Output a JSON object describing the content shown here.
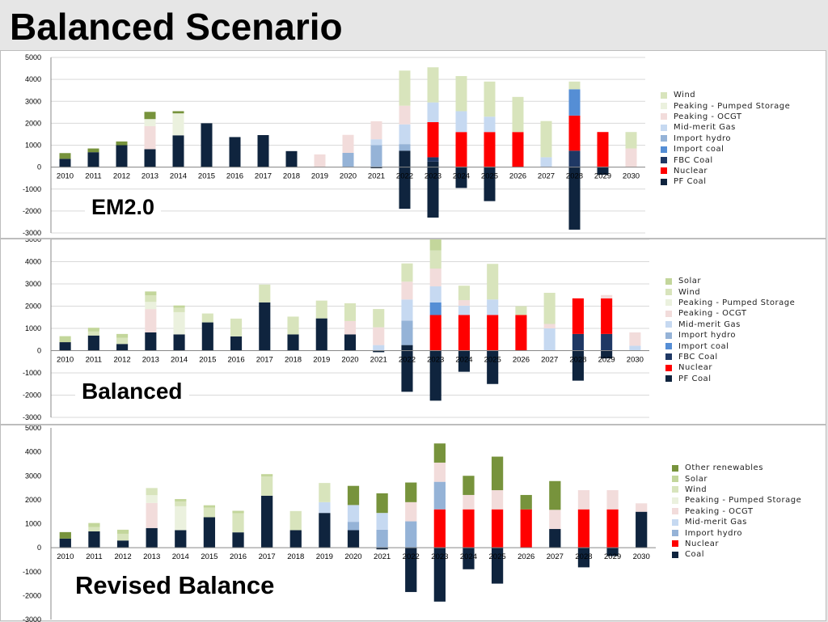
{
  "slide": {
    "title": "Balanced Scenario"
  },
  "colors": {
    "Wind": "#d8e4bc",
    "Solar": "#c3d69b",
    "Other renewables": "#77933c",
    "Peaking - Pumped Storage": "#ebf1de",
    "Peaking - OCGT": "#f2dcdb",
    "Mid-merit Gas": "#c6d9f1",
    "Import hydro": "#95b3d7",
    "Import coal": "#558ed5",
    "FBC Coal": "#1f3864",
    "Nuclear": "#ff0000",
    "PF Coal": "#0f243e",
    "Coal": "#0f243e"
  },
  "chart_data": [
    {
      "type": "bar",
      "stacked": true,
      "label": "EM2.0",
      "categories": [
        "2010",
        "2011",
        "2012",
        "2013",
        "2014",
        "2015",
        "2016",
        "2017",
        "2018",
        "2019",
        "2020",
        "2021",
        "2022",
        "2023",
        "2024",
        "2025",
        "2026",
        "2027",
        "2028",
        "2029",
        "2030"
      ],
      "ylim": [
        -3000,
        5000
      ],
      "yticks": [
        -3000,
        -2000,
        -1000,
        0,
        1000,
        2000,
        3000,
        4000,
        5000
      ],
      "grid": true,
      "legend_position": "right",
      "legend": [
        "Wind",
        "Peaking - Pumped Storage",
        "Peaking - OCGT",
        "Mid-merit Gas",
        "Import hydro",
        "Import coal",
        "FBC Coal",
        "Nuclear",
        "PF Coal"
      ],
      "series": [
        {
          "name": "PF Coal",
          "values": [
            380,
            680,
            1000,
            820,
            1450,
            2000,
            1370,
            1460,
            730,
            0,
            0,
            -50,
            750,
            250,
            0,
            0,
            0,
            0,
            0,
            -350,
            0
          ]
        },
        {
          "name": "FBC Coal",
          "values": [
            0,
            0,
            0,
            0,
            0,
            0,
            0,
            0,
            0,
            0,
            0,
            0,
            0,
            200,
            0,
            0,
            0,
            0,
            750,
            0,
            0
          ]
        },
        {
          "name": "Nuclear",
          "values": [
            0,
            0,
            0,
            0,
            0,
            0,
            0,
            0,
            0,
            0,
            0,
            0,
            0,
            1600,
            1600,
            1600,
            1600,
            0,
            1600,
            1600,
            0
          ]
        },
        {
          "name": "Import coal",
          "values": [
            0,
            0,
            0,
            0,
            0,
            0,
            0,
            0,
            0,
            0,
            0,
            0,
            0,
            0,
            0,
            0,
            0,
            0,
            1200,
            0,
            0
          ]
        },
        {
          "name": "Import hydro",
          "values": [
            0,
            0,
            0,
            0,
            0,
            0,
            0,
            0,
            0,
            0,
            650,
            1000,
            300,
            0,
            0,
            0,
            0,
            0,
            0,
            0,
            0
          ]
        },
        {
          "name": "Mid-merit Gas",
          "values": [
            0,
            0,
            0,
            0,
            0,
            0,
            0,
            0,
            0,
            0,
            0,
            270,
            900,
            900,
            950,
            700,
            0,
            450,
            0,
            0,
            0
          ]
        },
        {
          "name": "Peaking - OCGT",
          "values": [
            0,
            0,
            0,
            1050,
            0,
            0,
            0,
            0,
            0,
            580,
            820,
            820,
            850,
            0,
            0,
            0,
            0,
            0,
            0,
            0,
            850
          ]
        },
        {
          "name": "Peaking - Pumped Storage",
          "values": [
            0,
            0,
            0,
            320,
            1000,
            0,
            0,
            0,
            0,
            0,
            0,
            0,
            0,
            0,
            0,
            0,
            0,
            0,
            0,
            0,
            0
          ]
        },
        {
          "name": "Wind",
          "values": [
            0,
            0,
            0,
            0,
            0,
            0,
            0,
            0,
            0,
            0,
            0,
            0,
            1600,
            1600,
            1600,
            1600,
            1600,
            1650,
            350,
            0,
            750
          ]
        },
        {
          "name": "Other renewables",
          "values": [
            260,
            170,
            170,
            330,
            100,
            0,
            0,
            0,
            0,
            0,
            0,
            0,
            0,
            0,
            0,
            0,
            0,
            0,
            0,
            0,
            0
          ]
        },
        {
          "name": "PF Coal",
          "values": [
            0,
            0,
            0,
            0,
            0,
            0,
            0,
            0,
            0,
            0,
            0,
            0,
            -1900,
            -2300,
            -950,
            -1550,
            0,
            0,
            -2850,
            0,
            0
          ]
        }
      ]
    },
    {
      "type": "bar",
      "stacked": true,
      "label": "Balanced",
      "categories": [
        "2010",
        "2011",
        "2012",
        "2013",
        "2014",
        "2015",
        "2016",
        "2017",
        "2018",
        "2019",
        "2020",
        "2021",
        "2022",
        "2023",
        "2024",
        "2025",
        "2026",
        "2027",
        "2028",
        "2029",
        "2030"
      ],
      "ylim": [
        -3000,
        5000
      ],
      "yticks": [
        -3000,
        -2000,
        -1000,
        0,
        1000,
        2000,
        3000,
        4000,
        5000
      ],
      "grid": true,
      "legend_position": "right",
      "legend": [
        "Solar",
        "Wind",
        "Peaking - Pumped Storage",
        "Peaking - OCGT",
        "Mid-merit Gas",
        "Import hydro",
        "Import coal",
        "FBC Coal",
        "Nuclear",
        "PF Coal"
      ],
      "series": [
        {
          "name": "PF Coal",
          "values": [
            380,
            680,
            300,
            820,
            730,
            1270,
            640,
            2170,
            730,
            1450,
            730,
            -70,
            250,
            0,
            0,
            0,
            0,
            0,
            0,
            -350,
            0
          ]
        },
        {
          "name": "FBC Coal",
          "values": [
            0,
            0,
            0,
            0,
            0,
            0,
            0,
            0,
            0,
            0,
            0,
            0,
            0,
            0,
            0,
            0,
            0,
            0,
            750,
            750,
            0
          ]
        },
        {
          "name": "Nuclear",
          "values": [
            0,
            0,
            0,
            0,
            0,
            0,
            0,
            0,
            0,
            0,
            0,
            0,
            0,
            1600,
            1600,
            1600,
            1600,
            0,
            1600,
            1600,
            0
          ]
        },
        {
          "name": "Import coal",
          "values": [
            0,
            0,
            0,
            0,
            0,
            0,
            0,
            0,
            0,
            0,
            0,
            0,
            0,
            570,
            0,
            0,
            0,
            0,
            0,
            0,
            0
          ]
        },
        {
          "name": "Import hydro",
          "values": [
            0,
            0,
            0,
            0,
            0,
            0,
            0,
            0,
            0,
            0,
            0,
            0,
            1100,
            0,
            0,
            0,
            0,
            0,
            0,
            0,
            0
          ]
        },
        {
          "name": "Mid-merit Gas",
          "values": [
            0,
            0,
            0,
            0,
            0,
            0,
            0,
            0,
            0,
            0,
            0,
            250,
            950,
            720,
            420,
            700,
            0,
            1000,
            0,
            0,
            220
          ]
        },
        {
          "name": "Peaking - OCGT",
          "values": [
            0,
            0,
            0,
            1050,
            0,
            0,
            0,
            0,
            0,
            0,
            600,
            800,
            800,
            800,
            250,
            0,
            0,
            200,
            0,
            150,
            600
          ]
        },
        {
          "name": "Peaking - Pumped Storage",
          "values": [
            0,
            0,
            0,
            320,
            1000,
            0,
            0,
            0,
            0,
            0,
            0,
            0,
            0,
            0,
            0,
            0,
            0,
            0,
            0,
            0,
            0
          ]
        },
        {
          "name": "Wind",
          "values": [
            0,
            180,
            280,
            300,
            200,
            400,
            800,
            800,
            800,
            800,
            800,
            820,
            820,
            820,
            650,
            1600,
            400,
            1400,
            0,
            0,
            0
          ]
        },
        {
          "name": "Solar",
          "values": [
            270,
            170,
            170,
            170,
            100,
            0,
            0,
            0,
            0,
            0,
            0,
            0,
            0,
            500,
            0,
            0,
            0,
            0,
            0,
            0,
            0
          ]
        },
        {
          "name": "PF Coal",
          "values": [
            0,
            0,
            0,
            0,
            0,
            0,
            0,
            0,
            0,
            0,
            0,
            0,
            -1850,
            -2250,
            -950,
            -1500,
            0,
            0,
            -1350,
            0,
            0
          ]
        }
      ]
    },
    {
      "type": "bar",
      "stacked": true,
      "label": "Revised Balance",
      "categories": [
        "2010",
        "2011",
        "2012",
        "2013",
        "2014",
        "2015",
        "2016",
        "2017",
        "2018",
        "2019",
        "2020",
        "2021",
        "2022",
        "2023",
        "2024",
        "2025",
        "2026",
        "2027",
        "2028",
        "2029",
        "2030"
      ],
      "ylim": [
        -3000,
        5000
      ],
      "yticks": [
        -3000,
        -2000,
        -1000,
        0,
        1000,
        2000,
        3000,
        4000,
        5000
      ],
      "grid": false,
      "legend_position": "right",
      "legend": [
        "Other renewables",
        "Solar",
        "Wind",
        "Peaking - Pumped Storage",
        "Peaking - OCGT",
        "Mid-merit Gas",
        "Import hydro",
        "Nuclear",
        "Coal"
      ],
      "series": [
        {
          "name": "Coal",
          "values": [
            380,
            680,
            300,
            820,
            730,
            1270,
            640,
            2170,
            730,
            1450,
            730,
            -70,
            0,
            0,
            0,
            0,
            0,
            780,
            0,
            -350,
            1500
          ]
        },
        {
          "name": "Nuclear",
          "values": [
            0,
            0,
            0,
            0,
            0,
            0,
            0,
            0,
            0,
            0,
            0,
            0,
            0,
            1600,
            1600,
            1600,
            1600,
            0,
            1600,
            1600,
            0
          ]
        },
        {
          "name": "Import hydro",
          "values": [
            0,
            0,
            0,
            0,
            0,
            0,
            0,
            0,
            0,
            0,
            350,
            750,
            1100,
            1150,
            0,
            0,
            0,
            0,
            0,
            0,
            0
          ]
        },
        {
          "name": "Mid-merit Gas",
          "values": [
            0,
            0,
            0,
            0,
            0,
            0,
            0,
            0,
            0,
            450,
            700,
            700,
            0,
            0,
            0,
            0,
            0,
            0,
            0,
            0,
            0
          ]
        },
        {
          "name": "Peaking - OCGT",
          "values": [
            0,
            0,
            0,
            1050,
            0,
            0,
            0,
            0,
            0,
            0,
            0,
            0,
            800,
            800,
            600,
            800,
            0,
            800,
            800,
            800,
            350
          ]
        },
        {
          "name": "Peaking - Pumped Storage",
          "values": [
            0,
            0,
            0,
            320,
            1000,
            0,
            0,
            0,
            0,
            0,
            0,
            0,
            0,
            0,
            0,
            0,
            0,
            0,
            0,
            0,
            0
          ]
        },
        {
          "name": "Wind",
          "values": [
            0,
            180,
            280,
            300,
            200,
            400,
            800,
            800,
            800,
            800,
            0,
            0,
            0,
            0,
            0,
            0,
            0,
            0,
            0,
            0,
            0
          ]
        },
        {
          "name": "Solar",
          "values": [
            0,
            170,
            170,
            0,
            100,
            100,
            100,
            100,
            0,
            0,
            0,
            0,
            0,
            0,
            0,
            0,
            0,
            0,
            0,
            0,
            0
          ]
        },
        {
          "name": "Other renewables",
          "values": [
            270,
            0,
            0,
            0,
            0,
            0,
            0,
            0,
            0,
            0,
            800,
            820,
            820,
            800,
            800,
            1400,
            600,
            1200,
            0,
            0,
            0
          ]
        },
        {
          "name": "Coal",
          "values": [
            0,
            0,
            0,
            0,
            0,
            0,
            0,
            0,
            0,
            0,
            0,
            0,
            -1850,
            -2250,
            -900,
            -1500,
            0,
            0,
            -820,
            0,
            0
          ]
        }
      ]
    }
  ]
}
